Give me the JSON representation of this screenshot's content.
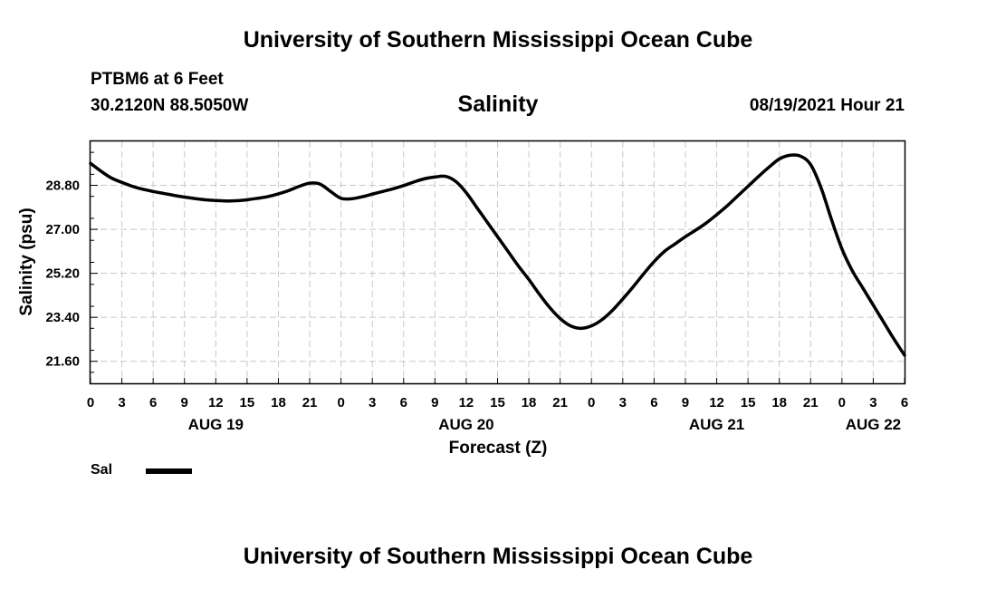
{
  "header": {
    "title": "University of Southern Mississippi Ocean Cube",
    "station": "PTBM6 at 6 Feet",
    "coordinates": "30.2120N  88.5050W",
    "variable": "Salinity",
    "datetime": "08/19/2021 Hour 21"
  },
  "footer": {
    "title": "University of Southern Mississippi Ocean Cube"
  },
  "legend": {
    "label": "Sal",
    "color": "#000000"
  },
  "chart_data": {
    "type": "line",
    "title": "Salinity",
    "xlabel": "Forecast (Z)",
    "ylabel": "Salinity (psu)",
    "x_unit": "hours since AUG 19 00Z",
    "xlim": [
      0,
      78
    ],
    "ylim": [
      20.7,
      30.6
    ],
    "grid": true,
    "x_ticks": [
      0,
      3,
      6,
      9,
      12,
      15,
      18,
      21,
      24,
      27,
      30,
      33,
      36,
      39,
      42,
      45,
      48,
      51,
      54,
      57,
      60,
      63,
      66,
      69,
      72,
      75,
      78
    ],
    "x_tick_labels": [
      "0",
      "3",
      "6",
      "9",
      "12",
      "15",
      "18",
      "21",
      "0",
      "3",
      "6",
      "9",
      "12",
      "15",
      "18",
      "21",
      "0",
      "3",
      "6",
      "9",
      "12",
      "15",
      "18",
      "21",
      "0",
      "3",
      "6"
    ],
    "date_labels": [
      {
        "x": 12,
        "label": "AUG 19"
      },
      {
        "x": 36,
        "label": "AUG 20"
      },
      {
        "x": 60,
        "label": "AUG 21"
      },
      {
        "x": 75,
        "label": "AUG 22"
      }
    ],
    "y_ticks": [
      21.6,
      23.4,
      25.2,
      27.0,
      28.8
    ],
    "y_tick_labels": [
      "21.60",
      "23.40",
      "25.20",
      "27.00",
      "28.80"
    ],
    "series": [
      {
        "name": "Sal",
        "color": "#000000",
        "x": [
          0,
          1,
          2,
          3,
          4,
          5,
          6,
          7,
          8,
          9,
          10,
          11,
          12,
          13,
          14,
          15,
          16,
          17,
          18,
          19,
          20,
          21,
          22,
          23,
          24,
          25,
          26,
          27,
          28,
          29,
          30,
          31,
          32,
          33,
          34,
          35,
          36,
          37,
          38,
          39,
          40,
          41,
          42,
          43,
          44,
          45,
          46,
          47,
          48,
          49,
          50,
          51,
          52,
          53,
          54,
          55,
          56,
          57,
          58,
          59,
          60,
          61,
          62,
          63,
          64,
          65,
          66,
          67,
          68,
          69,
          70,
          71,
          72,
          73,
          74,
          75,
          76,
          77,
          78
        ],
        "values": [
          29.7,
          29.38,
          29.1,
          28.92,
          28.76,
          28.64,
          28.55,
          28.47,
          28.39,
          28.32,
          28.26,
          28.21,
          28.18,
          28.16,
          28.17,
          28.21,
          28.27,
          28.34,
          28.45,
          28.59,
          28.76,
          28.89,
          28.85,
          28.55,
          28.27,
          28.25,
          28.33,
          28.44,
          28.55,
          28.66,
          28.79,
          28.94,
          29.07,
          29.14,
          29.17,
          28.96,
          28.5,
          27.9,
          27.3,
          26.7,
          26.1,
          25.5,
          24.95,
          24.35,
          23.8,
          23.35,
          23.05,
          22.95,
          23.05,
          23.3,
          23.68,
          24.15,
          24.65,
          25.18,
          25.68,
          26.1,
          26.4,
          26.7,
          26.97,
          27.26,
          27.6,
          27.96,
          28.36,
          28.76,
          29.16,
          29.54,
          29.88,
          30.03,
          30.0,
          29.65,
          28.7,
          27.4,
          26.2,
          25.3,
          24.6,
          23.9,
          23.2,
          22.5,
          21.85
        ]
      }
    ]
  }
}
